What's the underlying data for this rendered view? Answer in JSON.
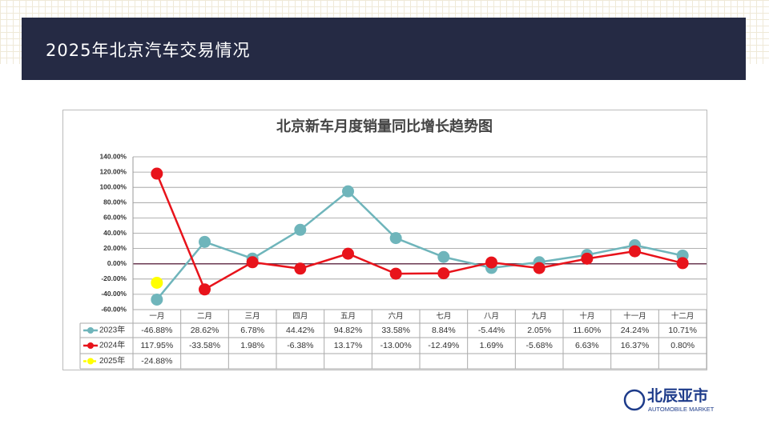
{
  "header": {
    "title": "2025年北京汽车交易情况"
  },
  "logo": {
    "name": "北辰亚市",
    "subtitle": "AUTOMOBILE MARKET"
  },
  "chart_data": {
    "type": "line",
    "title": "北京新车月度销量同比增长趋势图",
    "categories": [
      "一月",
      "二月",
      "三月",
      "四月",
      "五月",
      "六月",
      "七月",
      "八月",
      "九月",
      "十月",
      "十一月",
      "十二月"
    ],
    "series": [
      {
        "name": "2023年",
        "color": "#6fb5bb",
        "values": [
          -46.88,
          28.62,
          6.78,
          44.42,
          94.82,
          33.58,
          8.84,
          -5.44,
          2.05,
          11.6,
          24.24,
          10.71
        ],
        "value_labels": [
          "-46.88%",
          "28.62%",
          "6.78%",
          "44.42%",
          "94.82%",
          "33.58%",
          "8.84%",
          "-5.44%",
          "2.05%",
          "11.60%",
          "24.24%",
          "10.71%"
        ]
      },
      {
        "name": "2024年",
        "color": "#e8131b",
        "values": [
          117.95,
          -33.58,
          1.98,
          -6.38,
          13.17,
          -13.0,
          -12.49,
          1.69,
          -5.68,
          6.63,
          16.37,
          0.8
        ],
        "value_labels": [
          "117.95%",
          "-33.58%",
          "1.98%",
          "-6.38%",
          "13.17%",
          "-13.00%",
          "-12.49%",
          "1.69%",
          "-5.68%",
          "6.63%",
          "16.37%",
          "0.80%"
        ]
      },
      {
        "name": "2025年",
        "color": "#ffff00",
        "values": [
          -24.88,
          null,
          null,
          null,
          null,
          null,
          null,
          null,
          null,
          null,
          null,
          null
        ],
        "value_labels": [
          "-24.88%",
          null,
          null,
          null,
          null,
          null,
          null,
          null,
          null,
          null,
          null,
          null
        ]
      }
    ],
    "ylim": [
      -60,
      140
    ],
    "yticks": [
      {
        "value": -60,
        "label": "-60.00%"
      },
      {
        "value": -40,
        "label": "-40.00%"
      },
      {
        "value": -20,
        "label": "-20.00%"
      },
      {
        "value": 0,
        "label": "0.00%"
      },
      {
        "value": 20,
        "label": "20.00%"
      },
      {
        "value": 40,
        "label": "40.00%"
      },
      {
        "value": 60,
        "label": "60.00%"
      },
      {
        "value": 80,
        "label": "80.00%"
      },
      {
        "value": 100,
        "label": "100.00%"
      },
      {
        "value": 120,
        "label": "120.00%"
      },
      {
        "value": 140,
        "label": "140.00%"
      }
    ],
    "grid": true
  }
}
